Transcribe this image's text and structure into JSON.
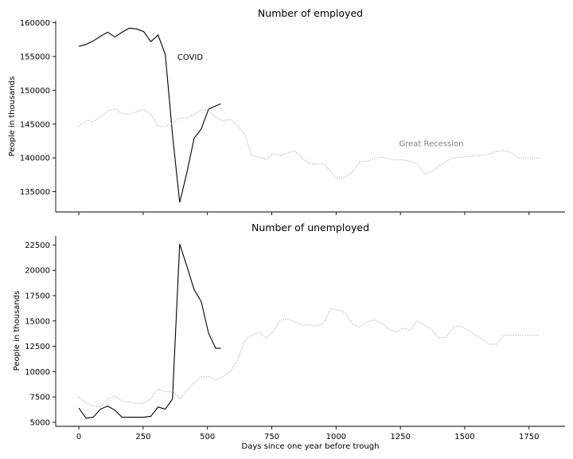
{
  "chart_data": [
    {
      "type": "line",
      "title": "Number of employed",
      "ylabel": "People in thousands",
      "xlabel": "",
      "xlim": [
        -90,
        1890
      ],
      "ylim": [
        132000,
        160300
      ],
      "yticks": [
        135000,
        140000,
        145000,
        150000,
        155000,
        160000
      ],
      "xticks": [
        0,
        250,
        500,
        750,
        1000,
        1250,
        1500,
        1750
      ],
      "show_xtick_labels": false,
      "grid": false,
      "annotations": [
        {
          "text": "COVID",
          "x": 383,
          "y": 155000,
          "color": "#000000"
        },
        {
          "text": "Great Recession",
          "x": 1245,
          "y": 142200,
          "color": "#808080"
        }
      ],
      "series": [
        {
          "style": "solid",
          "color": "#000000",
          "x": [
            0,
            28,
            56,
            84,
            112,
            140,
            168,
            196,
            224,
            252,
            280,
            308,
            336,
            364,
            392,
            420,
            448,
            476,
            504,
            532,
            552
          ],
          "y": [
            156500,
            156800,
            157300,
            158000,
            158600,
            157900,
            158600,
            159200,
            159100,
            158700,
            157200,
            158200,
            155300,
            143500,
            133400,
            137800,
            142900,
            144300,
            147200,
            147700,
            148000
          ]
        },
        {
          "style": "dotted",
          "color": "#9e9e9e",
          "x": [
            0,
            28,
            56,
            84,
            112,
            140,
            168,
            196,
            224,
            252,
            280,
            308,
            336,
            364,
            392,
            420,
            448,
            476,
            504,
            532,
            560,
            588,
            616,
            644,
            672,
            700,
            728,
            756,
            784,
            812,
            840,
            868,
            896,
            924,
            952,
            980,
            1008,
            1036,
            1064,
            1092,
            1120,
            1148,
            1176,
            1204,
            1232,
            1260,
            1288,
            1316,
            1344,
            1372,
            1400,
            1428,
            1456,
            1484,
            1512,
            1540,
            1568,
            1596,
            1624,
            1652,
            1680,
            1708,
            1736,
            1764,
            1792
          ],
          "y": [
            144700,
            145500,
            145400,
            146000,
            146900,
            147300,
            146500,
            146500,
            146800,
            147200,
            146400,
            144700,
            144600,
            145100,
            145900,
            145900,
            146400,
            147100,
            147000,
            146000,
            145500,
            145700,
            144800,
            143500,
            140400,
            140100,
            139800,
            140600,
            140300,
            140800,
            141000,
            140000,
            139100,
            139100,
            139100,
            137900,
            136900,
            137200,
            137900,
            139400,
            139500,
            139900,
            140100,
            139900,
            139700,
            139700,
            139500,
            139100,
            137600,
            138000,
            138800,
            139500,
            140000,
            140100,
            140200,
            140300,
            140400,
            140600,
            141000,
            141100,
            140800,
            140000,
            140000,
            140000,
            140000
          ]
        }
      ]
    },
    {
      "type": "line",
      "title": "Number of unemployed",
      "ylabel": "People in thousands",
      "xlabel": "Days since one year before trough",
      "xlim": [
        -90,
        1890
      ],
      "ylim": [
        4600,
        23400
      ],
      "yticks": [
        5000,
        7500,
        10000,
        12500,
        15000,
        17500,
        20000,
        22500
      ],
      "xticks": [
        0,
        250,
        500,
        750,
        1000,
        1250,
        1500,
        1750
      ],
      "show_xtick_labels": true,
      "grid": false,
      "series": [
        {
          "style": "solid",
          "color": "#000000",
          "x": [
            0,
            28,
            56,
            84,
            112,
            140,
            168,
            196,
            224,
            252,
            280,
            308,
            336,
            364,
            392,
            420,
            448,
            476,
            504,
            532,
            552
          ],
          "y": [
            6400,
            5400,
            5500,
            6300,
            6600,
            6200,
            5500,
            5500,
            5500,
            5500,
            5600,
            6500,
            6300,
            7300,
            22600,
            20400,
            18100,
            16900,
            13800,
            12300,
            12300
          ]
        },
        {
          "style": "dotted",
          "color": "#9e9e9e",
          "x": [
            0,
            28,
            56,
            84,
            112,
            140,
            168,
            196,
            224,
            252,
            280,
            308,
            336,
            364,
            392,
            420,
            448,
            476,
            504,
            532,
            560,
            588,
            616,
            644,
            672,
            700,
            728,
            756,
            784,
            812,
            840,
            868,
            896,
            924,
            952,
            980,
            1008,
            1036,
            1064,
            1092,
            1120,
            1148,
            1176,
            1204,
            1232,
            1260,
            1288,
            1316,
            1344,
            1372,
            1400,
            1428,
            1456,
            1484,
            1512,
            1540,
            1568,
            1596,
            1624,
            1652,
            1680,
            1708,
            1736,
            1764,
            1792
          ],
          "y": [
            7500,
            6900,
            6600,
            6500,
            7300,
            7600,
            7100,
            7000,
            6800,
            6900,
            7300,
            8300,
            8000,
            8100,
            7300,
            8100,
            8900,
            9500,
            9500,
            9200,
            9500,
            10000,
            11100,
            13000,
            13600,
            13900,
            13300,
            14000,
            15100,
            15200,
            14900,
            14600,
            14600,
            14500,
            14800,
            16200,
            16100,
            15800,
            14700,
            14400,
            14900,
            15100,
            14800,
            14200,
            13900,
            14300,
            14100,
            15000,
            14600,
            14100,
            13300,
            13400,
            14400,
            14500,
            14100,
            13600,
            13200,
            12700,
            12700,
            13600,
            13600,
            13600,
            13600,
            13600,
            13600
          ]
        }
      ]
    }
  ]
}
